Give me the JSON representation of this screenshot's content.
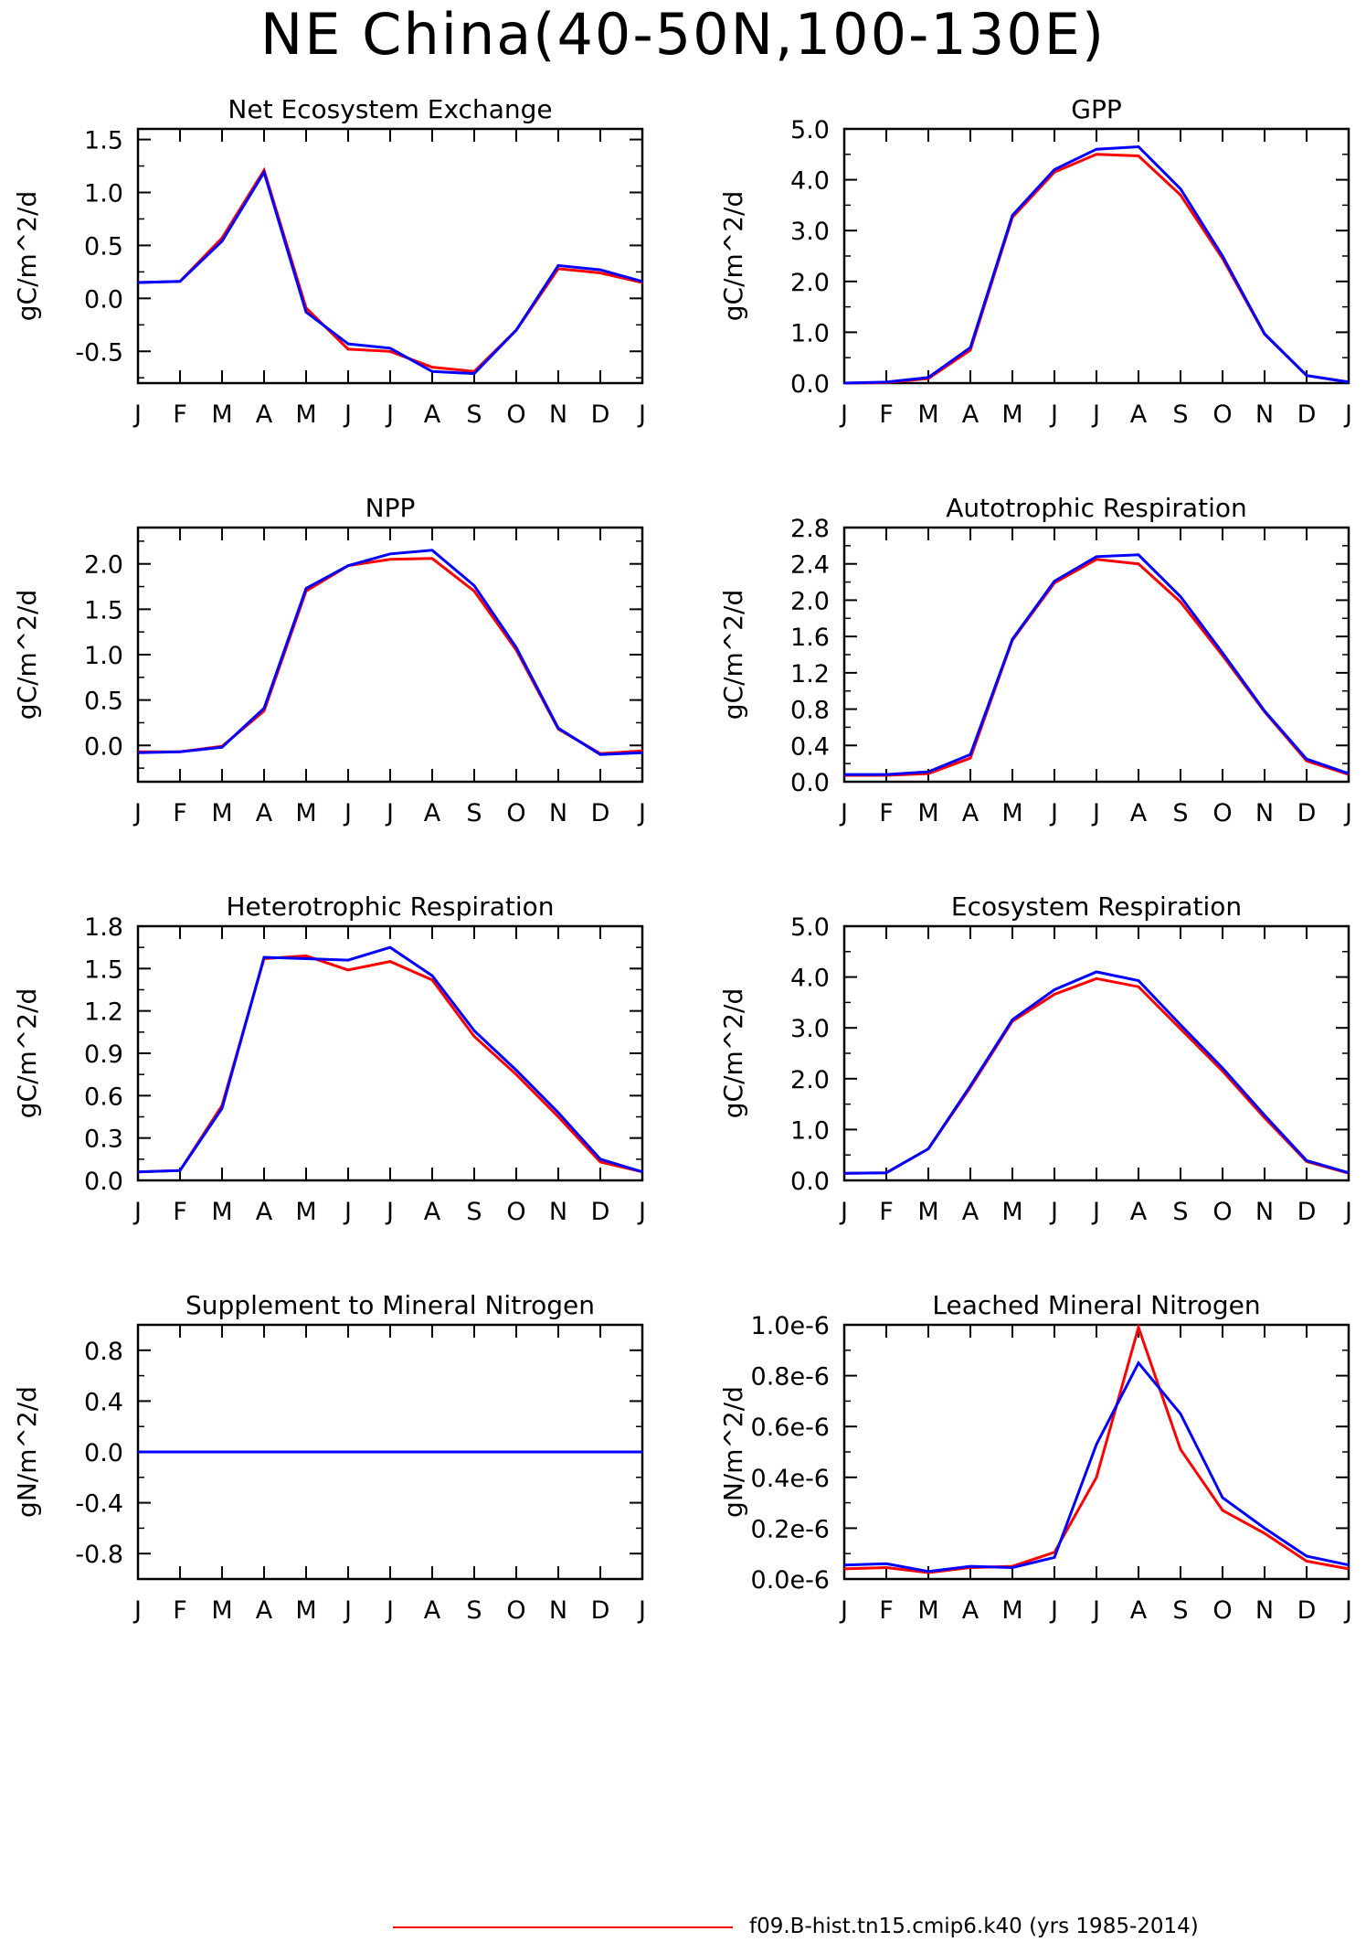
{
  "title": "NE China(40-50N,100-130E)",
  "legend": {
    "line_color": "#ff0000",
    "label": "f09.B-hist.tn15.cmip6.k40 (yrs 1985-2014)"
  },
  "colors": {
    "red": "#ff0000",
    "blue": "#0000ff"
  },
  "chart_data": [
    {
      "type": "line",
      "title": "Net Ecosystem Exchange",
      "ylabel": "gC/m^2/d",
      "x": [
        "J",
        "F",
        "M",
        "A",
        "M",
        "J",
        "J",
        "A",
        "S",
        "O",
        "N",
        "D",
        "J"
      ],
      "ylim": [
        -0.8,
        1.6
      ],
      "yticks": [
        "-0.5",
        "0.0",
        "0.5",
        "1.0",
        "1.5"
      ],
      "ytick_values": [
        -0.5,
        0.0,
        0.5,
        1.0,
        1.5
      ],
      "series": [
        {
          "color": "#ff0000",
          "values": [
            0.15,
            0.16,
            0.57,
            1.21,
            -0.09,
            -0.48,
            -0.5,
            -0.65,
            -0.69,
            -0.3,
            0.28,
            0.24,
            0.15
          ]
        },
        {
          "color": "#0000ff",
          "values": [
            0.15,
            0.16,
            0.54,
            1.19,
            -0.13,
            -0.43,
            -0.47,
            -0.69,
            -0.71,
            -0.3,
            0.31,
            0.27,
            0.16
          ]
        }
      ]
    },
    {
      "type": "line",
      "title": "GPP",
      "ylabel": "gC/m^2/d",
      "x": [
        "J",
        "F",
        "M",
        "A",
        "M",
        "J",
        "J",
        "A",
        "S",
        "O",
        "N",
        "D",
        "J"
      ],
      "ylim": [
        0.0,
        5.0
      ],
      "yticks": [
        "0.0",
        "1.0",
        "2.0",
        "3.0",
        "4.0",
        "5.0"
      ],
      "ytick_values": [
        0.0,
        1.0,
        2.0,
        3.0,
        4.0,
        5.0
      ],
      "series": [
        {
          "color": "#ff0000",
          "values": [
            0.0,
            0.01,
            0.09,
            0.65,
            3.26,
            4.15,
            4.5,
            4.47,
            3.7,
            2.45,
            0.96,
            0.15,
            0.02
          ]
        },
        {
          "color": "#0000ff",
          "values": [
            0.0,
            0.02,
            0.11,
            0.7,
            3.3,
            4.2,
            4.6,
            4.65,
            3.82,
            2.5,
            0.97,
            0.15,
            0.02
          ]
        }
      ]
    },
    {
      "type": "line",
      "title": "NPP",
      "ylabel": "gC/m^2/d",
      "x": [
        "J",
        "F",
        "M",
        "A",
        "M",
        "J",
        "J",
        "A",
        "S",
        "O",
        "N",
        "D",
        "J"
      ],
      "ylim": [
        -0.4,
        2.4
      ],
      "yticks": [
        "0.0",
        "0.5",
        "1.0",
        "1.5",
        "2.0"
      ],
      "ytick_values": [
        0.0,
        0.5,
        1.0,
        1.5,
        2.0
      ],
      "series": [
        {
          "color": "#ff0000",
          "values": [
            -0.07,
            -0.07,
            -0.01,
            0.38,
            1.7,
            1.98,
            2.05,
            2.06,
            1.7,
            1.05,
            0.18,
            -0.09,
            -0.06
          ]
        },
        {
          "color": "#0000ff",
          "values": [
            -0.08,
            -0.07,
            -0.02,
            0.41,
            1.73,
            1.98,
            2.11,
            2.15,
            1.76,
            1.08,
            0.19,
            -0.1,
            -0.08
          ]
        }
      ]
    },
    {
      "type": "line",
      "title": "Autotrophic Respiration",
      "ylabel": "gC/m^2/d",
      "x": [
        "J",
        "F",
        "M",
        "A",
        "M",
        "J",
        "J",
        "A",
        "S",
        "O",
        "N",
        "D",
        "J"
      ],
      "ylim": [
        0.0,
        2.8
      ],
      "yticks": [
        "0.0",
        "0.4",
        "0.8",
        "1.2",
        "1.6",
        "2.0",
        "2.4",
        "2.8"
      ],
      "ytick_values": [
        0.0,
        0.4,
        0.8,
        1.2,
        1.6,
        2.0,
        2.4,
        2.8
      ],
      "series": [
        {
          "color": "#ff0000",
          "values": [
            0.07,
            0.07,
            0.09,
            0.26,
            1.56,
            2.19,
            2.45,
            2.4,
            1.98,
            1.39,
            0.77,
            0.23,
            0.08
          ]
        },
        {
          "color": "#0000ff",
          "values": [
            0.08,
            0.08,
            0.11,
            0.3,
            1.57,
            2.21,
            2.48,
            2.5,
            2.04,
            1.42,
            0.78,
            0.25,
            0.09
          ]
        }
      ]
    },
    {
      "type": "line",
      "title": "Heterotrophic Respiration",
      "ylabel": "gC/m^2/d",
      "x": [
        "J",
        "F",
        "M",
        "A",
        "M",
        "J",
        "J",
        "A",
        "S",
        "O",
        "N",
        "D",
        "J"
      ],
      "ylim": [
        0.0,
        1.8
      ],
      "yticks": [
        "0.0",
        "0.3",
        "0.6",
        "0.9",
        "1.2",
        "1.5",
        "1.8"
      ],
      "ytick_values": [
        0.0,
        0.3,
        0.6,
        0.9,
        1.2,
        1.5,
        1.8
      ],
      "series": [
        {
          "color": "#ff0000",
          "values": [
            0.06,
            0.07,
            0.53,
            1.57,
            1.59,
            1.49,
            1.55,
            1.42,
            1.02,
            0.75,
            0.45,
            0.13,
            0.06
          ]
        },
        {
          "color": "#0000ff",
          "values": [
            0.06,
            0.07,
            0.51,
            1.58,
            1.57,
            1.56,
            1.65,
            1.45,
            1.06,
            0.78,
            0.48,
            0.15,
            0.06
          ]
        }
      ]
    },
    {
      "type": "line",
      "title": "Ecosystem Respiration",
      "ylabel": "gC/m^2/d",
      "x": [
        "J",
        "F",
        "M",
        "A",
        "M",
        "J",
        "J",
        "A",
        "S",
        "O",
        "N",
        "D",
        "J"
      ],
      "ylim": [
        0.0,
        5.0
      ],
      "yticks": [
        "0.0",
        "1.0",
        "2.0",
        "3.0",
        "4.0",
        "5.0"
      ],
      "ytick_values": [
        0.0,
        1.0,
        2.0,
        3.0,
        4.0,
        5.0
      ],
      "series": [
        {
          "color": "#ff0000",
          "values": [
            0.14,
            0.15,
            0.62,
            1.83,
            3.13,
            3.66,
            3.97,
            3.81,
            2.98,
            2.15,
            1.23,
            0.37,
            0.14
          ]
        },
        {
          "color": "#0000ff",
          "values": [
            0.14,
            0.15,
            0.62,
            1.86,
            3.16,
            3.75,
            4.1,
            3.93,
            3.06,
            2.21,
            1.28,
            0.39,
            0.15
          ]
        }
      ]
    },
    {
      "type": "line",
      "title": "Supplement to Mineral Nitrogen",
      "ylabel": "gN/m^2/d",
      "x": [
        "J",
        "F",
        "M",
        "A",
        "M",
        "J",
        "J",
        "A",
        "S",
        "O",
        "N",
        "D",
        "J"
      ],
      "ylim": [
        -1.0,
        1.0
      ],
      "yticks": [
        "-0.8",
        "-0.4",
        "0.0",
        "0.4",
        "0.8"
      ],
      "ytick_values": [
        -0.8,
        -0.4,
        0.0,
        0.4,
        0.8
      ],
      "series": [
        {
          "color": "#ff0000",
          "values": [
            0,
            0,
            0,
            0,
            0,
            0,
            0,
            0,
            0,
            0,
            0,
            0,
            0
          ]
        },
        {
          "color": "#0000ff",
          "values": [
            0,
            0,
            0,
            0,
            0,
            0,
            0,
            0,
            0,
            0,
            0,
            0,
            0
          ]
        }
      ]
    },
    {
      "type": "line",
      "title": "Leached Mineral Nitrogen",
      "ylabel": "gN/m^2/d",
      "x": [
        "J",
        "F",
        "M",
        "A",
        "M",
        "J",
        "J",
        "A",
        "S",
        "O",
        "N",
        "D",
        "J"
      ],
      "ylim": [
        0.0,
        1e-06
      ],
      "yticks": [
        "0.0e-6",
        "0.2e-6",
        "0.4e-6",
        "0.6e-6",
        "0.8e-6",
        "1.0e-6"
      ],
      "ytick_values": [
        0.0,
        2e-07,
        4e-07,
        6e-07,
        8e-07,
        1e-06
      ],
      "series": [
        {
          "color": "#ff0000",
          "values": [
            4e-08,
            4.5e-08,
            2.5e-08,
            4.5e-08,
            5e-08,
            1.05e-07,
            4e-07,
            9.9e-07,
            5.1e-07,
            2.7e-07,
            1.8e-07,
            7e-08,
            4e-08
          ]
        },
        {
          "color": "#0000ff",
          "values": [
            5.5e-08,
            6e-08,
            3e-08,
            5e-08,
            4.5e-08,
            8.5e-08,
            5.3e-07,
            8.5e-07,
            6.5e-07,
            3.2e-07,
            2e-07,
            9e-08,
            5.5e-08
          ]
        }
      ]
    }
  ]
}
